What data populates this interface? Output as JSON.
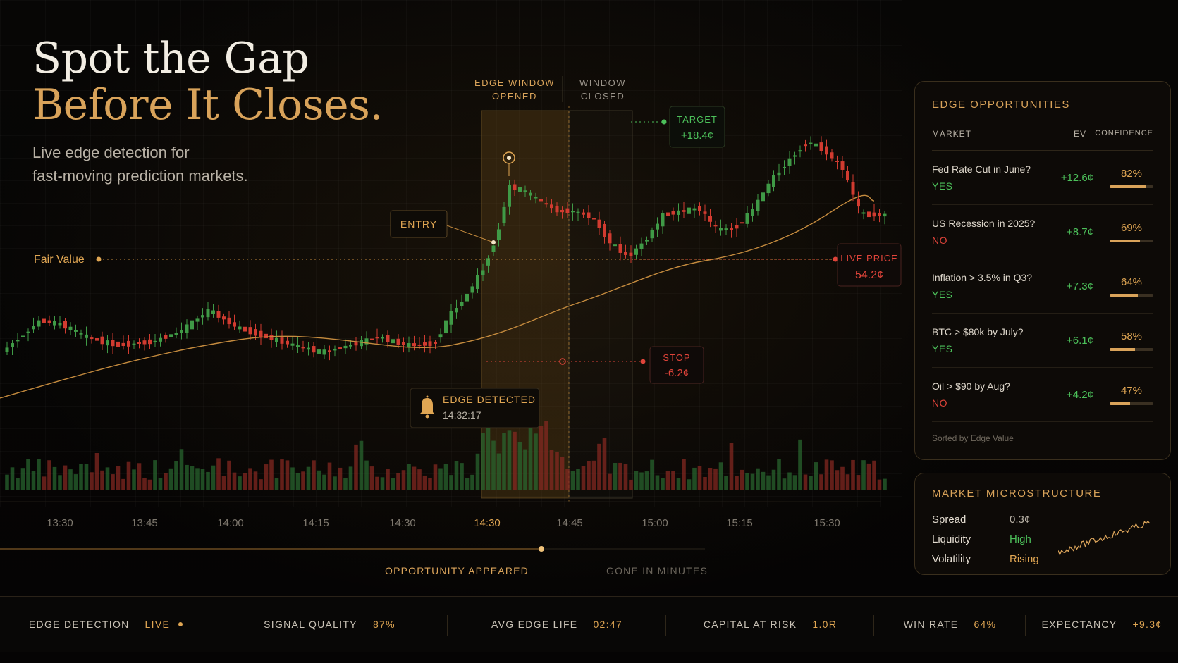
{
  "hero": {
    "line1": "Spot the Gap",
    "line2": "Before It Closes.",
    "subtitle_line1": "Live edge detection for",
    "subtitle_line2": "fast-moving prediction markets."
  },
  "chart_labels": {
    "edge_window_opened_1": "EDGE WINDOW",
    "edge_window_opened_2": "OPENED",
    "window_closed_1": "WINDOW",
    "window_closed_2": "CLOSED",
    "target_label": "TARGET",
    "target_value": "+18.4¢",
    "entry": "ENTRY",
    "fair_value": "Fair Value",
    "live_price_label": "LIVE PRICE",
    "live_price_value": "54.2¢",
    "stop_label": "STOP",
    "stop_value": "-6.2¢",
    "edge_detected": "EDGE DETECTED",
    "edge_detected_time": "14:32:17"
  },
  "time_axis": [
    "13:30",
    "13:45",
    "14:00",
    "14:15",
    "14:30",
    "14:30",
    "14:45",
    "15:00",
    "15:15",
    "15:30"
  ],
  "timeline": {
    "appeared": "OPPORTUNITY APPEARED",
    "gone": "GONE IN MINUTES"
  },
  "edge_panel": {
    "title": "EDGE OPPORTUNITIES",
    "col_market": "MARKET",
    "col_ev": "EV",
    "col_confidence": "CONFIDENCE",
    "rows": [
      {
        "market": "Fed Rate Cut in June?",
        "side": "YES",
        "ev": "+12.6¢",
        "confidence": "82%",
        "conf_value": 0.82
      },
      {
        "market": "US Recession in 2025?",
        "side": "NO",
        "ev": "+8.7¢",
        "confidence": "69%",
        "conf_value": 0.69
      },
      {
        "market": "Inflation > 3.5% in Q3?",
        "side": "YES",
        "ev": "+7.3¢",
        "confidence": "64%",
        "conf_value": 0.64
      },
      {
        "market": "BTC > $80k by July?",
        "side": "YES",
        "ev": "+6.1¢",
        "confidence": "58%",
        "conf_value": 0.58
      },
      {
        "market": "Oil > $90 by Aug?",
        "side": "NO",
        "ev": "+4.2¢",
        "confidence": "47%",
        "conf_value": 0.47
      }
    ],
    "footer": "Sorted by Edge Value"
  },
  "micro_panel": {
    "title": "MARKET MICROSTRUCTURE",
    "rows": [
      {
        "key": "Spread",
        "value": "0.3¢",
        "color": "#b9b2a6"
      },
      {
        "key": "Liquidity",
        "value": "High",
        "color": "#4cc05a"
      },
      {
        "key": "Volatility",
        "value": "Rising",
        "color": "#e0a653"
      }
    ]
  },
  "status_bar": [
    {
      "key": "EDGE DETECTION",
      "value": "LIVE"
    },
    {
      "key": "SIGNAL QUALITY",
      "value": "87%"
    },
    {
      "key": "AVG EDGE LIFE",
      "value": "02:47"
    },
    {
      "key": "CAPITAL AT RISK",
      "value": "1.0R"
    },
    {
      "key": "WIN RATE",
      "value": "64%"
    },
    {
      "key": "EXPECTANCY",
      "value": "+9.3¢"
    }
  ],
  "colors": {
    "gold": "#d9a35a",
    "green": "#4cc05a",
    "red": "#e0443a"
  }
}
